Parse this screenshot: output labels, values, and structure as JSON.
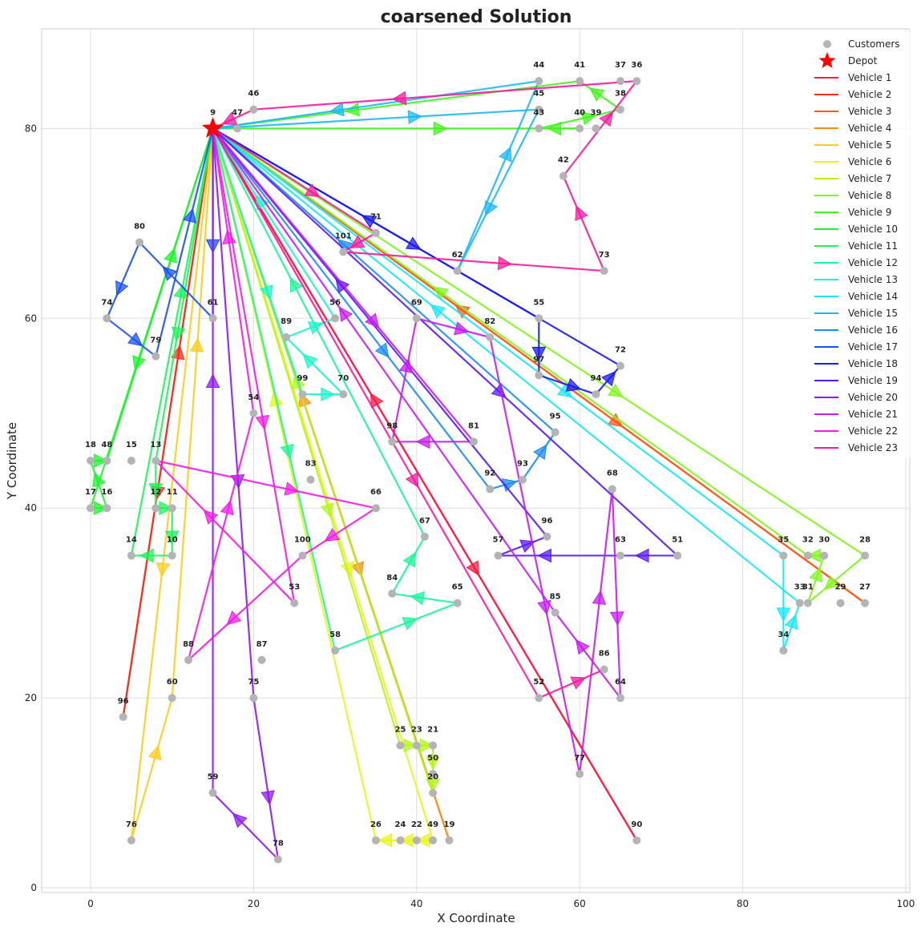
{
  "chart_data": {
    "type": "scatter",
    "title": "coarsened Solution",
    "xlabel": "X Coordinate",
    "ylabel": "Y Coordinate",
    "xlim": [
      -6,
      100.5
    ],
    "ylim": [
      -0.5,
      90.5
    ],
    "xticks": [
      0,
      20,
      40,
      60,
      80,
      100
    ],
    "yticks": [
      0,
      20,
      40,
      60,
      80
    ],
    "grid": true,
    "legend_position": "top-right",
    "legend": {
      "customers": "Customers",
      "depot": "Depot"
    },
    "depot": {
      "id": "9",
      "x": 15,
      "y": 80
    },
    "customers": [
      {
        "id": "9",
        "x": 15,
        "y": 80
      },
      {
        "id": "47",
        "x": 18,
        "y": 80
      },
      {
        "id": "46",
        "x": 20,
        "y": 82
      },
      {
        "id": "44",
        "x": 55,
        "y": 85
      },
      {
        "id": "45",
        "x": 55,
        "y": 82
      },
      {
        "id": "43",
        "x": 55,
        "y": 80
      },
      {
        "id": "41",
        "x": 60,
        "y": 85
      },
      {
        "id": "40",
        "x": 60,
        "y": 80
      },
      {
        "id": "39",
        "x": 62,
        "y": 80
      },
      {
        "id": "37",
        "x": 65,
        "y": 85
      },
      {
        "id": "38",
        "x": 65,
        "y": 82
      },
      {
        "id": "36",
        "x": 67,
        "y": 85
      },
      {
        "id": "42",
        "x": 58,
        "y": 75
      },
      {
        "id": "73",
        "x": 63,
        "y": 65
      },
      {
        "id": "71",
        "x": 35,
        "y": 69
      },
      {
        "id": "101",
        "x": 31,
        "y": 67
      },
      {
        "id": "62",
        "x": 45,
        "y": 65
      },
      {
        "id": "80",
        "x": 6,
        "y": 68
      },
      {
        "id": "74",
        "x": 2,
        "y": 60
      },
      {
        "id": "61",
        "x": 15,
        "y": 60
      },
      {
        "id": "79",
        "x": 8,
        "y": 56
      },
      {
        "id": "89",
        "x": 24,
        "y": 58
      },
      {
        "id": "56",
        "x": 30,
        "y": 60
      },
      {
        "id": "69",
        "x": 40,
        "y": 60
      },
      {
        "id": "82",
        "x": 49,
        "y": 58
      },
      {
        "id": "55",
        "x": 55,
        "y": 60
      },
      {
        "id": "72",
        "x": 65,
        "y": 55
      },
      {
        "id": "97",
        "x": 55,
        "y": 54
      },
      {
        "id": "94",
        "x": 62,
        "y": 52
      },
      {
        "id": "99",
        "x": 26,
        "y": 52
      },
      {
        "id": "70",
        "x": 31,
        "y": 52
      },
      {
        "id": "54",
        "x": 20,
        "y": 50
      },
      {
        "id": "98",
        "x": 37,
        "y": 47
      },
      {
        "id": "81",
        "x": 47,
        "y": 47
      },
      {
        "id": "95",
        "x": 57,
        "y": 48
      },
      {
        "id": "18",
        "x": 0,
        "y": 45
      },
      {
        "id": "48",
        "x": 2,
        "y": 45
      },
      {
        "id": "15",
        "x": 5,
        "y": 45
      },
      {
        "id": "13",
        "x": 8,
        "y": 45
      },
      {
        "id": "83",
        "x": 27,
        "y": 43
      },
      {
        "id": "92",
        "x": 49,
        "y": 42
      },
      {
        "id": "93",
        "x": 53,
        "y": 43
      },
      {
        "id": "68",
        "x": 64,
        "y": 42
      },
      {
        "id": "17",
        "x": 0,
        "y": 40
      },
      {
        "id": "16",
        "x": 2,
        "y": 40
      },
      {
        "id": "12",
        "x": 8,
        "y": 40
      },
      {
        "id": "11",
        "x": 10,
        "y": 40
      },
      {
        "id": "66",
        "x": 35,
        "y": 40
      },
      {
        "id": "14",
        "x": 5,
        "y": 35
      },
      {
        "id": "10",
        "x": 10,
        "y": 35
      },
      {
        "id": "100",
        "x": 26,
        "y": 35
      },
      {
        "id": "67",
        "x": 41,
        "y": 37
      },
      {
        "id": "96",
        "x": 56,
        "y": 37
      },
      {
        "id": "57",
        "x": 50,
        "y": 35
      },
      {
        "id": "63",
        "x": 65,
        "y": 35
      },
      {
        "id": "51",
        "x": 72,
        "y": 35
      },
      {
        "id": "35",
        "x": 85,
        "y": 35
      },
      {
        "id": "32",
        "x": 88,
        "y": 35
      },
      {
        "id": "30",
        "x": 90,
        "y": 35
      },
      {
        "id": "28",
        "x": 95,
        "y": 35
      },
      {
        "id": "53",
        "x": 25,
        "y": 30
      },
      {
        "id": "84",
        "x": 37,
        "y": 31
      },
      {
        "id": "65",
        "x": 45,
        "y": 30
      },
      {
        "id": "85",
        "x": 57,
        "y": 29
      },
      {
        "id": "33",
        "x": 87,
        "y": 30
      },
      {
        "id": "31",
        "x": 88,
        "y": 30
      },
      {
        "id": "29",
        "x": 92,
        "y": 30
      },
      {
        "id": "27",
        "x": 95,
        "y": 30
      },
      {
        "id": "58",
        "x": 30,
        "y": 25
      },
      {
        "id": "88",
        "x": 12,
        "y": 24
      },
      {
        "id": "87",
        "x": 21,
        "y": 24
      },
      {
        "id": "86",
        "x": 63,
        "y": 23
      },
      {
        "id": "34",
        "x": 85,
        "y": 25
      },
      {
        "id": "60",
        "x": 10,
        "y": 20
      },
      {
        "id": "75",
        "x": 20,
        "y": 20
      },
      {
        "id": "52",
        "x": 55,
        "y": 20
      },
      {
        "id": "64",
        "x": 65,
        "y": 20
      },
      {
        "id": "96b",
        "x": 4,
        "y": 18
      },
      {
        "id": "25",
        "x": 38,
        "y": 15
      },
      {
        "id": "23",
        "x": 40,
        "y": 15
      },
      {
        "id": "21",
        "x": 42,
        "y": 15
      },
      {
        "id": "50",
        "x": 42,
        "y": 12
      },
      {
        "id": "20",
        "x": 42,
        "y": 10
      },
      {
        "id": "77",
        "x": 60,
        "y": 12
      },
      {
        "id": "59",
        "x": 15,
        "y": 10
      },
      {
        "id": "76",
        "x": 5,
        "y": 5
      },
      {
        "id": "26",
        "x": 35,
        "y": 5
      },
      {
        "id": "24",
        "x": 38,
        "y": 5
      },
      {
        "id": "22",
        "x": 40,
        "y": 5
      },
      {
        "id": "49",
        "x": 42,
        "y": 5
      },
      {
        "id": "19",
        "x": 44,
        "y": 5
      },
      {
        "id": "90",
        "x": 67,
        "y": 5
      },
      {
        "id": "78",
        "x": 23,
        "y": 3
      }
    ],
    "series": [
      {
        "name": "Vehicle 1",
        "color": "#ff1a40",
        "route": [
          "9",
          "90",
          "9"
        ]
      },
      {
        "name": "Vehicle 2",
        "color": "#ff2a1a",
        "route": [
          "9",
          "96b",
          "9"
        ]
      },
      {
        "name": "Vehicle 3",
        "color": "#ff5a1a",
        "route": [
          "9",
          "27",
          "9"
        ]
      },
      {
        "name": "Vehicle 4",
        "color": "#ff8c1a",
        "route": [
          "9",
          "19",
          "9"
        ]
      },
      {
        "name": "Vehicle 5",
        "color": "#ffcc1a",
        "route": [
          "9",
          "76",
          "60",
          "9"
        ]
      },
      {
        "name": "Vehicle 6",
        "color": "#e8f51a",
        "route": [
          "9",
          "49",
          "22",
          "24",
          "26",
          "9"
        ]
      },
      {
        "name": "Vehicle 7",
        "color": "#b3f51a",
        "route": [
          "9",
          "25",
          "23",
          "21",
          "50",
          "20",
          "9"
        ]
      },
      {
        "name": "Vehicle 8",
        "color": "#80f51a",
        "route": [
          "9",
          "28",
          "31",
          "30",
          "32",
          "9"
        ]
      },
      {
        "name": "Vehicle 9",
        "color": "#40f51a",
        "route": [
          "9",
          "40",
          "43",
          "38",
          "41",
          "9"
        ]
      },
      {
        "name": "Vehicle 10",
        "color": "#1af52a",
        "route": [
          "9",
          "17",
          "16",
          "18",
          "48",
          "9"
        ]
      },
      {
        "name": "Vehicle 11",
        "color": "#1af55a",
        "route": [
          "9",
          "13",
          "12",
          "11",
          "10",
          "14",
          "9"
        ]
      },
      {
        "name": "Vehicle 12",
        "color": "#1af59a",
        "route": [
          "9",
          "58",
          "65",
          "84",
          "67",
          "9"
        ]
      },
      {
        "name": "Vehicle 13",
        "color": "#1af5c8",
        "route": [
          "9",
          "99",
          "70",
          "89",
          "56",
          "9"
        ]
      },
      {
        "name": "Vehicle 14",
        "color": "#1ae6f5",
        "route": [
          "9",
          "35",
          "34",
          "33",
          "9"
        ]
      },
      {
        "name": "Vehicle 15",
        "color": "#1ab8f5",
        "route": [
          "9",
          "45",
          "62",
          "44",
          "9"
        ]
      },
      {
        "name": "Vehicle 16",
        "color": "#1a8cf5",
        "route": [
          "9",
          "92",
          "93",
          "95",
          "9"
        ]
      },
      {
        "name": "Vehicle 17",
        "color": "#1a50f5",
        "route": [
          "9",
          "61",
          "80",
          "74",
          "79",
          "9"
        ]
      },
      {
        "name": "Vehicle 18",
        "color": "#1a1af5",
        "route": [
          "9",
          "55",
          "97",
          "94",
          "72",
          "9"
        ]
      },
      {
        "name": "Vehicle 19",
        "color": "#5a1af5",
        "route": [
          "9",
          "51",
          "63",
          "57",
          "96",
          "9"
        ]
      },
      {
        "name": "Vehicle 20",
        "color": "#8c1af5",
        "route": [
          "9",
          "75",
          "78",
          "59",
          "9"
        ]
      },
      {
        "name": "Vehicle 21",
        "color": "#c81af5",
        "route": [
          "9",
          "81",
          "98",
          "69",
          "82",
          "77",
          "68",
          "64",
          "85",
          "9"
        ]
      },
      {
        "name": "Vehicle 22",
        "color": "#f51ae6",
        "route": [
          "9",
          "53",
          "13",
          "66",
          "100",
          "88",
          "54",
          "9"
        ]
      },
      {
        "name": "Vehicle 23",
        "color": "#f51aa0",
        "route": [
          "9",
          "71",
          "101",
          "73",
          "42",
          "36",
          "46",
          "9",
          "52",
          "86"
        ]
      }
    ]
  }
}
